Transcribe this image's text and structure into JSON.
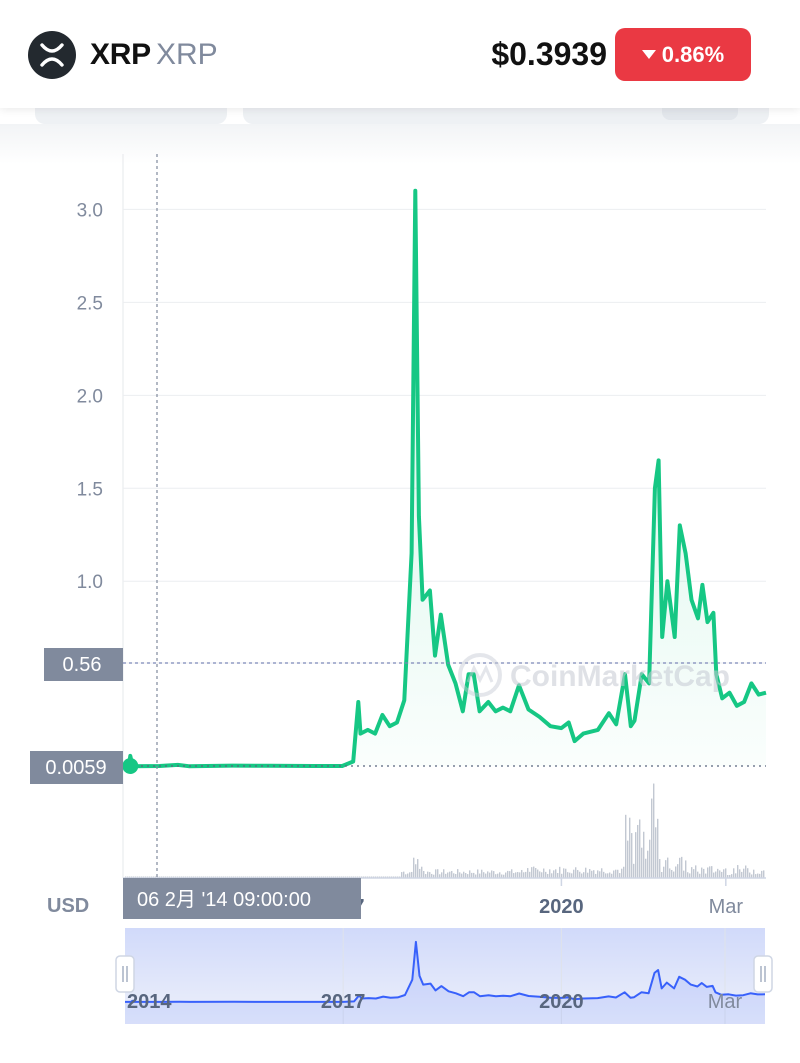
{
  "header": {
    "coin_name": "XRP",
    "coin_symbol": "XRP",
    "price": "$0.3939",
    "change": "0.86%",
    "change_direction": "down",
    "change_color": "#ea3943",
    "logo_icon": "xrp-logo-icon"
  },
  "chart": {
    "currency_label": "USD",
    "watermark": "CoinMarketCap",
    "crosshair_date": "06 2月 '14   09:00:00",
    "crosshair_value": "0.0059",
    "reference_value": "0.56",
    "line_color": "#16c784",
    "navigator_color": "#3861fb"
  },
  "chart_data": {
    "type": "line",
    "x_tick_labels": [
      "2017",
      "2020",
      "Mar"
    ],
    "y_tick_labels": [
      "0.56",
      "1.0",
      "1.5",
      "2.0",
      "2.5",
      "3.0"
    ],
    "ylim": [
      0,
      3.15
    ],
    "grid": true,
    "series": [
      {
        "values": [
          [
            2014.0,
            0.0059
          ],
          [
            2014.08,
            0.0059
          ],
          [
            2014.1,
            0.06
          ],
          [
            2014.13,
            0.005
          ],
          [
            2014.5,
            0.006
          ],
          [
            2014.75,
            0.012
          ],
          [
            2014.9,
            0.005
          ],
          [
            2015.5,
            0.008
          ],
          [
            2016.0,
            0.007
          ],
          [
            2016.6,
            0.006
          ],
          [
            2017.0,
            0.006
          ],
          [
            2017.15,
            0.03
          ],
          [
            2017.22,
            0.35
          ],
          [
            2017.25,
            0.18
          ],
          [
            2017.35,
            0.2
          ],
          [
            2017.45,
            0.18
          ],
          [
            2017.55,
            0.28
          ],
          [
            2017.65,
            0.22
          ],
          [
            2017.75,
            0.24
          ],
          [
            2017.85,
            0.36
          ],
          [
            2017.95,
            1.15
          ],
          [
            2018.0,
            3.1
          ],
          [
            2018.05,
            1.35
          ],
          [
            2018.1,
            0.9
          ],
          [
            2018.2,
            0.95
          ],
          [
            2018.27,
            0.6
          ],
          [
            2018.35,
            0.82
          ],
          [
            2018.45,
            0.55
          ],
          [
            2018.55,
            0.45
          ],
          [
            2018.65,
            0.3
          ],
          [
            2018.73,
            0.5
          ],
          [
            2018.8,
            0.5
          ],
          [
            2018.88,
            0.3
          ],
          [
            2019.0,
            0.35
          ],
          [
            2019.1,
            0.3
          ],
          [
            2019.2,
            0.32
          ],
          [
            2019.3,
            0.3
          ],
          [
            2019.42,
            0.44
          ],
          [
            2019.55,
            0.31
          ],
          [
            2019.7,
            0.27
          ],
          [
            2019.85,
            0.22
          ],
          [
            2020.0,
            0.21
          ],
          [
            2020.1,
            0.24
          ],
          [
            2020.18,
            0.14
          ],
          [
            2020.3,
            0.18
          ],
          [
            2020.5,
            0.2
          ],
          [
            2020.65,
            0.29
          ],
          [
            2020.75,
            0.23
          ],
          [
            2020.87,
            0.5
          ],
          [
            2020.95,
            0.22
          ],
          [
            2021.0,
            0.25
          ],
          [
            2021.1,
            0.5
          ],
          [
            2021.2,
            0.45
          ],
          [
            2021.28,
            1.5
          ],
          [
            2021.33,
            1.65
          ],
          [
            2021.38,
            0.7
          ],
          [
            2021.45,
            1.0
          ],
          [
            2021.55,
            0.7
          ],
          [
            2021.62,
            1.3
          ],
          [
            2021.7,
            1.15
          ],
          [
            2021.78,
            0.9
          ],
          [
            2021.87,
            0.8
          ],
          [
            2021.93,
            0.98
          ],
          [
            2022.0,
            0.78
          ],
          [
            2022.08,
            0.83
          ],
          [
            2022.12,
            0.5
          ],
          [
            2022.2,
            0.37
          ],
          [
            2022.3,
            0.4
          ],
          [
            2022.4,
            0.33
          ],
          [
            2022.5,
            0.35
          ],
          [
            2022.6,
            0.45
          ],
          [
            2022.7,
            0.39
          ],
          [
            2022.8,
            0.4
          ]
        ]
      }
    ]
  }
}
